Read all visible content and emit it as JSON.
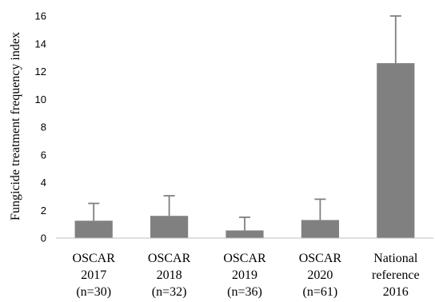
{
  "chart_data": {
    "type": "bar",
    "title": "",
    "xlabel": "",
    "ylabel": "Fungicide treatment frequency index",
    "ylim": [
      0,
      16
    ],
    "yticks": [
      0,
      2,
      4,
      6,
      8,
      10,
      12,
      14,
      16
    ],
    "grid": false,
    "bar_color": "#808080",
    "categories": [
      [
        "OSCAR",
        "2017",
        "(n=30)"
      ],
      [
        "OSCAR",
        "2018",
        "(n=32)"
      ],
      [
        "OSCAR",
        "2019",
        "(n=36)"
      ],
      [
        "OSCAR",
        "2020",
        "(n=61)"
      ],
      [
        "National",
        "reference",
        "2016"
      ]
    ],
    "values": [
      1.25,
      1.6,
      0.55,
      1.3,
      12.6
    ],
    "error_upper": [
      2.5,
      3.05,
      1.5,
      2.8,
      16.0
    ]
  }
}
